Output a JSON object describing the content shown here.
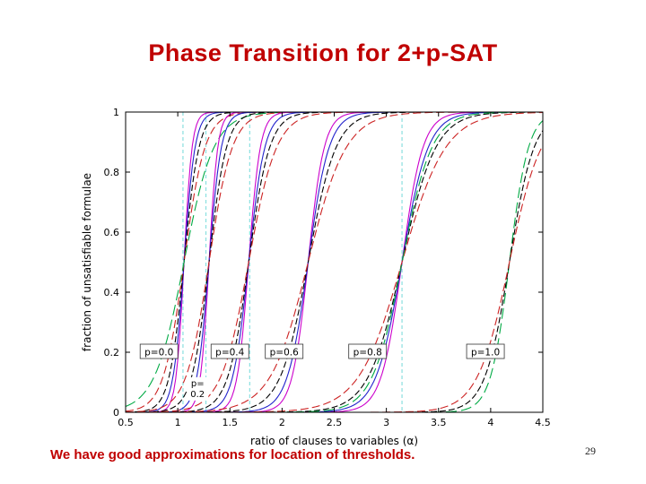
{
  "title": "Phase Transition for 2+p-SAT",
  "caption": "We have good approximations for location of thresholds.",
  "page_number": "29",
  "colors": {
    "title_text": "#c00000",
    "caption_text": "#c00000",
    "axis": "#000000",
    "threshold_guides": "#8ae0e0"
  },
  "chart_data": {
    "type": "line",
    "title": "",
    "xlabel": "ratio of clauses to variables (α)",
    "ylabel": "fraction of unsatisfiable formulae",
    "xlim": [
      0.5,
      4.5
    ],
    "ylim": [
      0,
      1
    ],
    "xticks": [
      0.5,
      1,
      1.5,
      2,
      2.5,
      3,
      3.5,
      4,
      4.5
    ],
    "yticks": [
      0,
      0.2,
      0.4,
      0.6,
      0.8,
      1
    ],
    "grid": false,
    "legend": "none",
    "curve_model": "logistic: y = 1/(1+exp(-k*(x-threshold)))",
    "threshold_line_color": "#8ae0e0",
    "vertical_threshold_lines": [
      1.05,
      1.27,
      1.69,
      3.15
    ],
    "families": [
      {
        "p_value": "p=0.0",
        "threshold": 1.06,
        "label_x": 0.82,
        "label_y": 0.2,
        "boxed": true,
        "curves": [
          {
            "color": "#cc00cc",
            "k": 26,
            "dash": "none"
          },
          {
            "color": "#2222cc",
            "k": 19,
            "dash": "none"
          },
          {
            "color": "#000000",
            "k": 14,
            "dash": "7 3"
          },
          {
            "color": "#cc2222",
            "k": 10,
            "dash": "9 4"
          },
          {
            "color": "#00aa44",
            "k": 7,
            "dash": "12 5"
          }
        ]
      },
      {
        "p_value": "p=0.2",
        "threshold": 1.3,
        "label_x": 1.19,
        "label_y": 0.09,
        "boxed": false,
        "label_lines": [
          "p=",
          "0.2"
        ],
        "curves": [
          {
            "color": "#cc00cc",
            "k": 24,
            "dash": "none"
          },
          {
            "color": "#2222cc",
            "k": 17,
            "dash": "none"
          },
          {
            "color": "#000000",
            "k": 12,
            "dash": "7 3"
          },
          {
            "color": "#cc2222",
            "k": 9,
            "dash": "9 4"
          }
        ]
      },
      {
        "p_value": "p=0.4",
        "threshold": 1.68,
        "label_x": 1.5,
        "label_y": 0.2,
        "boxed": true,
        "curves": [
          {
            "color": "#cc00cc",
            "k": 18,
            "dash": "none"
          },
          {
            "color": "#2222cc",
            "k": 13,
            "dash": "none"
          },
          {
            "color": "#000000",
            "k": 10,
            "dash": "7 3"
          },
          {
            "color": "#cc2222",
            "k": 7.5,
            "dash": "9 4"
          }
        ]
      },
      {
        "p_value": "p=0.6",
        "threshold": 2.25,
        "label_x": 2.02,
        "label_y": 0.2,
        "boxed": true,
        "curves": [
          {
            "color": "#cc00cc",
            "k": 13,
            "dash": "none"
          },
          {
            "color": "#2222cc",
            "k": 10,
            "dash": "none"
          },
          {
            "color": "#000000",
            "k": 7.5,
            "dash": "7 3"
          },
          {
            "color": "#cc2222",
            "k": 5.5,
            "dash": "9 4"
          }
        ]
      },
      {
        "p_value": "p=0.8",
        "threshold": 3.15,
        "label_x": 2.82,
        "label_y": 0.2,
        "boxed": true,
        "curves": [
          {
            "color": "#cc00cc",
            "k": 10,
            "dash": "none"
          },
          {
            "color": "#2222cc",
            "k": 8,
            "dash": "none"
          },
          {
            "color": "#000000",
            "k": 6.2,
            "dash": "7 3"
          },
          {
            "color": "#cc2222",
            "k": 4.8,
            "dash": "9 4"
          },
          {
            "color": "#00aa44",
            "k": 7,
            "dash": "12 5"
          }
        ]
      },
      {
        "p_value": "p=1.0",
        "threshold": 4.18,
        "label_x": 3.95,
        "label_y": 0.2,
        "boxed": true,
        "curves": [
          {
            "color": "#00aa44",
            "k": 11,
            "dash": "12 5"
          },
          {
            "color": "#000000",
            "k": 8.5,
            "dash": "7 3"
          },
          {
            "color": "#cc2222",
            "k": 6.5,
            "dash": "9 4"
          }
        ]
      }
    ]
  }
}
